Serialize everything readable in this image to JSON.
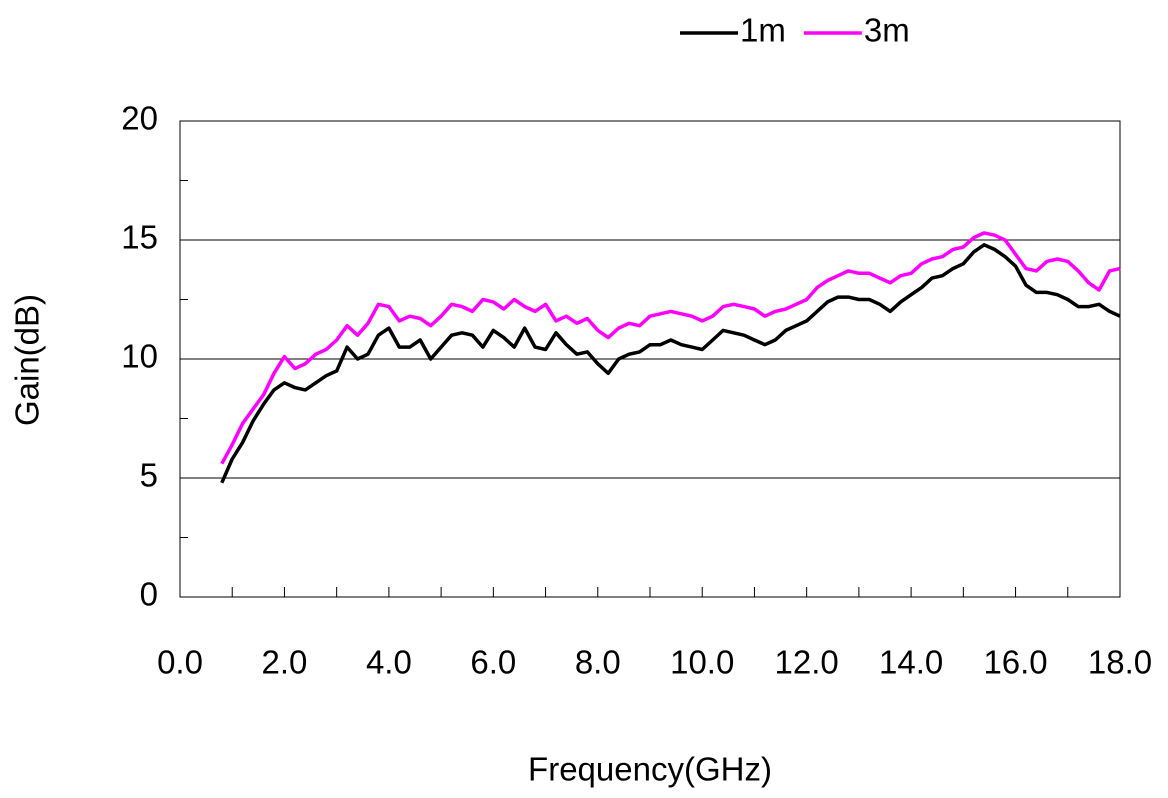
{
  "chart_data": {
    "type": "line",
    "xlabel": "Frequency(GHz)",
    "ylabel": "Gain(dB)",
    "x": [
      0.8,
      1.0,
      1.2,
      1.4,
      1.6,
      1.8,
      2.0,
      2.2,
      2.4,
      2.6,
      2.8,
      3.0,
      3.2,
      3.4,
      3.6,
      3.8,
      4.0,
      4.2,
      4.4,
      4.6,
      4.8,
      5.0,
      5.2,
      5.4,
      5.6,
      5.8,
      6.0,
      6.2,
      6.4,
      6.6,
      6.8,
      7.0,
      7.2,
      7.4,
      7.6,
      7.8,
      8.0,
      8.2,
      8.4,
      8.6,
      8.8,
      9.0,
      9.2,
      9.4,
      9.6,
      9.8,
      10.0,
      10.2,
      10.4,
      10.6,
      10.8,
      11.0,
      11.2,
      11.4,
      11.6,
      11.8,
      12.0,
      12.2,
      12.4,
      12.6,
      12.8,
      13.0,
      13.2,
      13.4,
      13.6,
      13.8,
      14.0,
      14.2,
      14.4,
      14.6,
      14.8,
      15.0,
      15.2,
      15.4,
      15.6,
      15.8,
      16.0,
      16.2,
      16.4,
      16.6,
      16.8,
      17.0,
      17.2,
      17.4,
      17.6,
      17.8,
      18.0
    ],
    "series": [
      {
        "name": "1m",
        "color": "#000000",
        "values": [
          4.8,
          5.8,
          6.5,
          7.4,
          8.1,
          8.7,
          9.0,
          8.8,
          8.7,
          9.0,
          9.3,
          9.5,
          10.5,
          10.0,
          10.2,
          11.0,
          11.3,
          10.5,
          10.5,
          10.8,
          10.0,
          10.5,
          11.0,
          11.1,
          11.0,
          10.5,
          11.2,
          10.9,
          10.5,
          11.3,
          10.5,
          10.4,
          11.1,
          10.6,
          10.2,
          10.3,
          9.8,
          9.4,
          10.0,
          10.2,
          10.3,
          10.6,
          10.6,
          10.8,
          10.6,
          10.5,
          10.4,
          10.8,
          11.2,
          11.1,
          11.0,
          10.8,
          10.6,
          10.8,
          11.2,
          11.4,
          11.6,
          12.0,
          12.4,
          12.6,
          12.6,
          12.5,
          12.5,
          12.3,
          12.0,
          12.4,
          12.7,
          13.0,
          13.4,
          13.5,
          13.8,
          14.0,
          14.5,
          14.8,
          14.6,
          14.3,
          13.9,
          13.1,
          12.8,
          12.8,
          12.7,
          12.5,
          12.2,
          12.2,
          12.3,
          12.0,
          11.8
        ]
      },
      {
        "name": "3m",
        "color": "#ff00ff",
        "values": [
          5.6,
          6.4,
          7.3,
          7.9,
          8.5,
          9.4,
          10.1,
          9.6,
          9.8,
          10.2,
          10.4,
          10.8,
          11.4,
          11.0,
          11.5,
          12.3,
          12.2,
          11.6,
          11.8,
          11.7,
          11.4,
          11.8,
          12.3,
          12.2,
          12.0,
          12.5,
          12.4,
          12.1,
          12.5,
          12.2,
          12.0,
          12.3,
          11.6,
          11.8,
          11.5,
          11.7,
          11.2,
          10.9,
          11.3,
          11.5,
          11.4,
          11.8,
          11.9,
          12.0,
          11.9,
          11.8,
          11.6,
          11.8,
          12.2,
          12.3,
          12.2,
          12.1,
          11.8,
          12.0,
          12.1,
          12.3,
          12.5,
          13.0,
          13.3,
          13.5,
          13.7,
          13.6,
          13.6,
          13.4,
          13.2,
          13.5,
          13.6,
          14.0,
          14.2,
          14.3,
          14.6,
          14.7,
          15.1,
          15.3,
          15.2,
          15.0,
          14.4,
          13.8,
          13.7,
          14.1,
          14.2,
          14.1,
          13.7,
          13.2,
          12.9,
          13.7,
          13.8
        ]
      }
    ],
    "xlim": [
      0,
      18
    ],
    "ylim": [
      0,
      20
    ],
    "xticks": [
      {
        "value": 0,
        "label": "0.0"
      },
      {
        "value": 2,
        "label": "2.0"
      },
      {
        "value": 4,
        "label": "4.0"
      },
      {
        "value": 6,
        "label": "6.0"
      },
      {
        "value": 8,
        "label": "8.0"
      },
      {
        "value": 10,
        "label": "10.0"
      },
      {
        "value": 12,
        "label": "12.0"
      },
      {
        "value": 14,
        "label": "14.0"
      },
      {
        "value": 16,
        "label": "16.0"
      },
      {
        "value": 18,
        "label": "18.0"
      }
    ],
    "yticks": [
      0,
      5,
      10,
      15,
      20
    ],
    "grid": true,
    "legend": "top"
  }
}
